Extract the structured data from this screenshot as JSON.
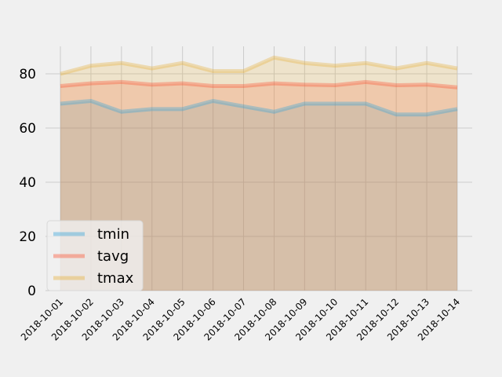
{
  "chart_data": {
    "type": "area",
    "title": "",
    "xlabel": "",
    "ylabel": "",
    "categories": [
      "2018-10-01",
      "2018-10-02",
      "2018-10-03",
      "2018-10-04",
      "2018-10-05",
      "2018-10-06",
      "2018-10-07",
      "2018-10-08",
      "2018-10-09",
      "2018-10-10",
      "2018-10-11",
      "2018-10-12",
      "2018-10-13",
      "2018-10-14"
    ],
    "ylim": [
      0,
      90
    ],
    "yticks": [
      0,
      20,
      40,
      60,
      80
    ],
    "grid": true,
    "stacked": false,
    "legend_position": "lower-left",
    "series": [
      {
        "name": "tmin",
        "color": "#30a2da",
        "values": [
          69,
          70,
          66,
          67,
          67,
          70,
          68,
          66,
          69,
          69,
          69,
          65,
          65,
          67
        ]
      },
      {
        "name": "tavg",
        "color": "#fc4f30",
        "values": [
          75.5,
          76.5,
          77,
          76,
          76.5,
          75.5,
          75.5,
          76.5,
          76,
          75.8,
          77,
          75.8,
          76,
          75
        ]
      },
      {
        "name": "tmax",
        "color": "#e5ae38",
        "values": [
          80,
          83,
          84,
          82,
          84,
          81,
          81,
          86,
          84,
          83,
          84,
          82,
          84,
          82
        ]
      }
    ]
  }
}
